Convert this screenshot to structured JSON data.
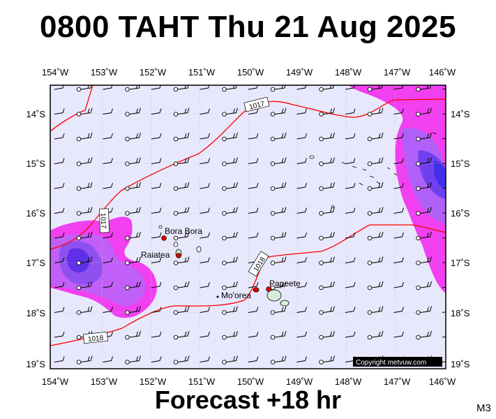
{
  "title": "0800 TAHT Thu 21 Aug 2025",
  "forecast_label": "Forecast +18 hr",
  "model_label": "M3",
  "copyright": "Copyright metvuw.com",
  "longitude_labels": [
    "154˚W",
    "153˚W",
    "152˚W",
    "151˚W",
    "150˚W",
    "149˚W",
    "148˚W",
    "147˚W",
    "146˚W"
  ],
  "latitude_labels": [
    "14˚S",
    "15˚S",
    "16˚S",
    "17˚S",
    "18˚S",
    "19˚S"
  ],
  "isobar_labels": [
    "1017",
    "1017",
    "1018",
    "1018"
  ],
  "places": [
    {
      "name": "Bora Bora"
    },
    {
      "name": "Raiatea"
    },
    {
      "name": "Mo'orea"
    },
    {
      "name": "Papeete"
    }
  ],
  "colors": {
    "background": "#e8e8fc",
    "isobar": "#ff0000",
    "rain_light": "#f040f0",
    "rain_medium": "#c060f8",
    "rain_heavy": "#7040f0",
    "gridline": "#c0c0d8"
  }
}
